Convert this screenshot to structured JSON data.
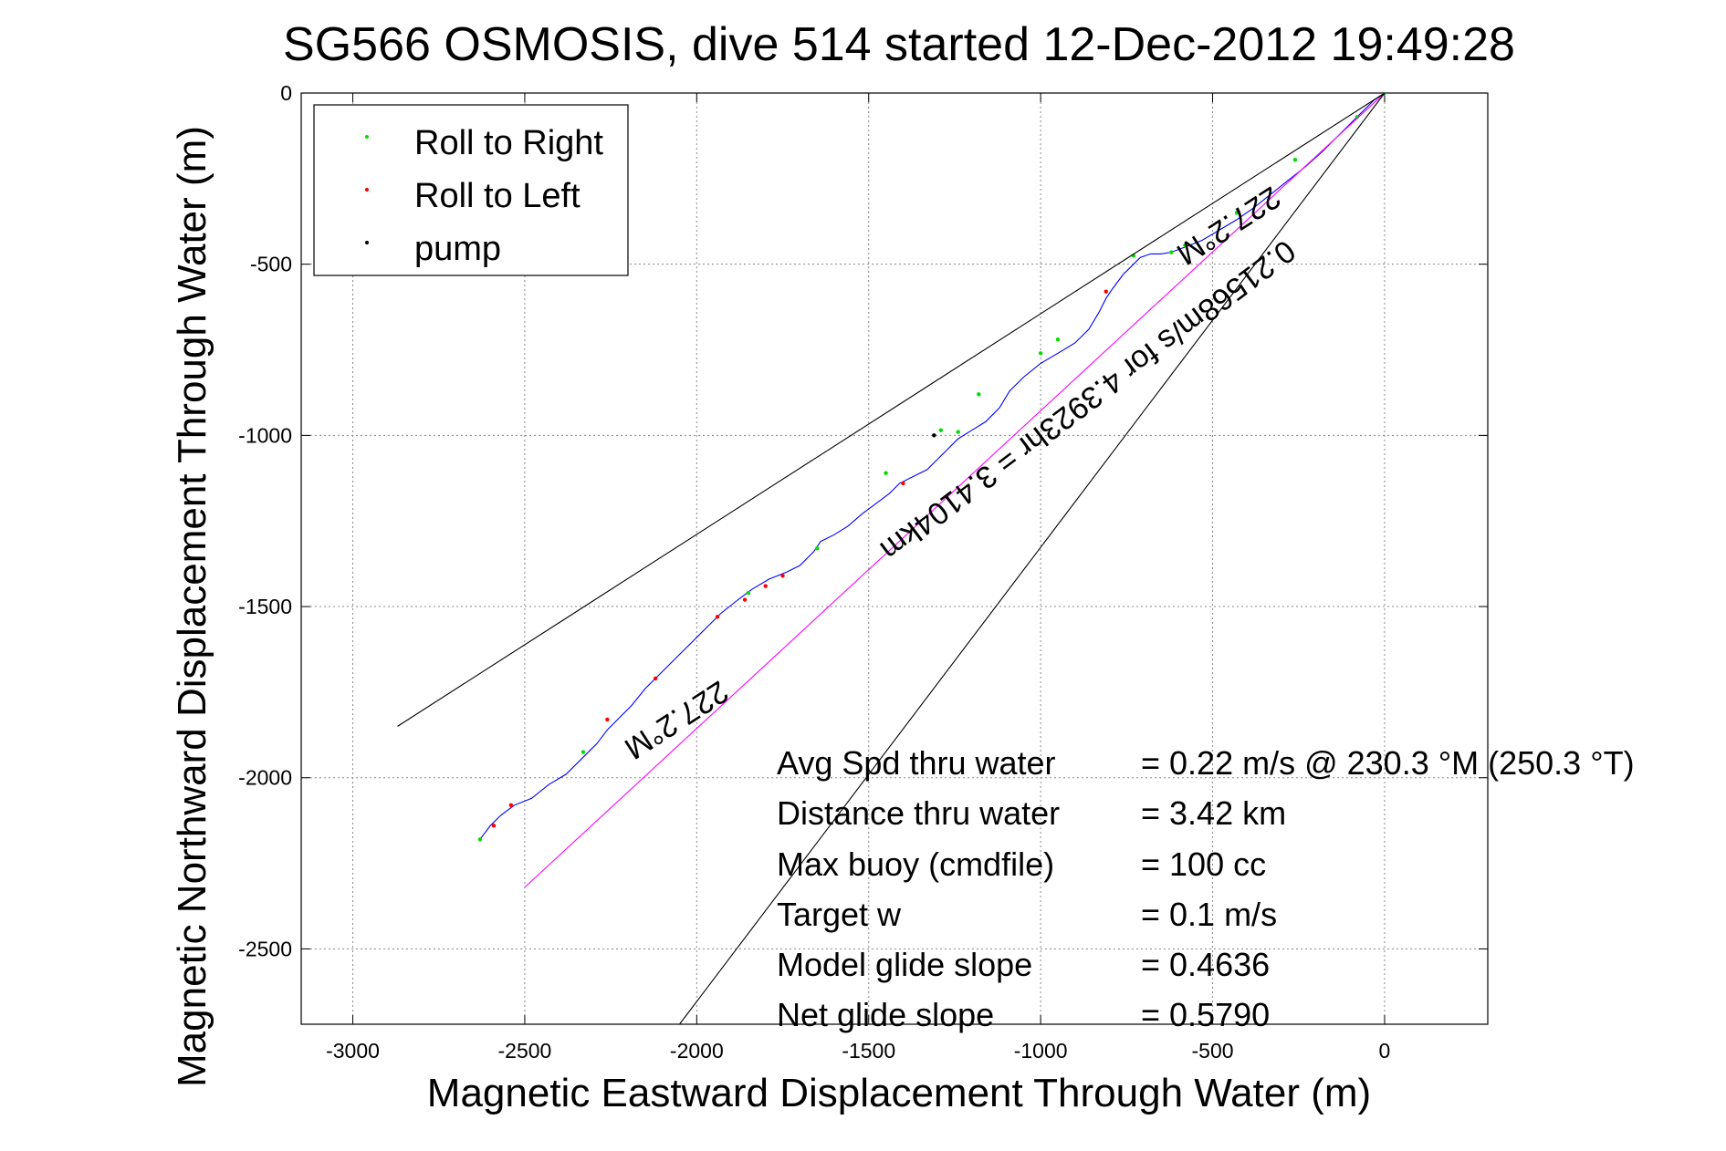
{
  "chart_data": {
    "type": "line",
    "title": "SG566 OSMOSIS, dive 514 started 12-Dec-2012 19:49:28",
    "xlabel": "Magnetic Eastward Displacement Through Water (m)",
    "ylabel": "Magnetic Northward Displacement Through Water (m)",
    "xlim": [
      -3150,
      300
    ],
    "ylim": [
      -2720,
      0
    ],
    "xticks": [
      "-3000",
      "-2500",
      "-2000",
      "-1500",
      "-1000",
      "-500",
      "0"
    ],
    "xtick_values": [
      -3000,
      -2500,
      -2000,
      -1500,
      -1000,
      -500,
      0
    ],
    "yticks": [
      "0",
      "-500",
      "-1000",
      "-1500",
      "-2000",
      "-2500"
    ],
    "ytick_values": [
      0,
      -500,
      -1000,
      -1500,
      -2000,
      -2500
    ],
    "grid": true,
    "legend_placement": "top-left",
    "legend": [
      {
        "label": "Roll to Right",
        "color": "#00dd00"
      },
      {
        "label": "Roll to Left",
        "color": "#ff0000"
      },
      {
        "label": "pump",
        "color": "#000000"
      }
    ],
    "series": [
      {
        "name": "track",
        "color": "#0000ff",
        "x": [
          0,
          -30,
          -80,
          -130,
          -180,
          -230,
          -280,
          -330,
          -380,
          -430,
          -480,
          -530,
          -580,
          -620,
          -650,
          -680,
          -710,
          -730,
          -760,
          -790,
          -810,
          -830,
          -860,
          -900,
          -950,
          -1000,
          -1050,
          -1090,
          -1120,
          -1160,
          -1200,
          -1240,
          -1270,
          -1300,
          -1330,
          -1370,
          -1410,
          -1440,
          -1480,
          -1520,
          -1560,
          -1600,
          -1640,
          -1660,
          -1700,
          -1740,
          -1790,
          -1840,
          -1880,
          -1930,
          -1970,
          -2010,
          -2060,
          -2110,
          -2150,
          -2190,
          -2230,
          -2260,
          -2290,
          -2330,
          -2380,
          -2430,
          -2480,
          -2530,
          -2570,
          -2600,
          -2630
        ],
        "y": [
          0,
          -20,
          -70,
          -120,
          -170,
          -215,
          -255,
          -295,
          -335,
          -370,
          -400,
          -430,
          -450,
          -465,
          -470,
          -470,
          -480,
          -500,
          -530,
          -570,
          -600,
          -640,
          -690,
          -730,
          -760,
          -790,
          -830,
          -870,
          -920,
          -960,
          -985,
          -1010,
          -1040,
          -1070,
          -1100,
          -1120,
          -1140,
          -1170,
          -1200,
          -1230,
          -1265,
          -1290,
          -1310,
          -1340,
          -1380,
          -1400,
          -1420,
          -1450,
          -1480,
          -1520,
          -1560,
          -1600,
          -1650,
          -1700,
          -1740,
          -1790,
          -1830,
          -1860,
          -1900,
          -1940,
          -1990,
          -2020,
          -2060,
          -2080,
          -2110,
          -2140,
          -2180
        ]
      },
      {
        "name": "Roll to Right",
        "color": "#00dd00",
        "mode": "markers",
        "x": [
          0,
          -80,
          -260,
          -430,
          -580,
          -620,
          -730,
          -950,
          -1000,
          -1180,
          -1240,
          -1290,
          -1450,
          -1650,
          -1850,
          -2330,
          -2630
        ],
        "y": [
          0,
          -70,
          -195,
          -350,
          -445,
          -465,
          -475,
          -720,
          -760,
          -880,
          -990,
          -985,
          -1110,
          -1330,
          -1460,
          -1925,
          -2180
        ]
      },
      {
        "name": "Roll to Left",
        "color": "#ff0000",
        "mode": "markers",
        "x": [
          -810,
          -1400,
          -1750,
          -1800,
          -1860,
          -1940,
          -2120,
          -2260,
          -2540,
          -2590
        ],
        "y": [
          -580,
          -1140,
          -1410,
          -1440,
          -1480,
          -1530,
          -1710,
          -1830,
          -2080,
          -2140
        ]
      },
      {
        "name": "pump",
        "color": "#000000",
        "mode": "markers",
        "x": [
          -1310
        ],
        "y": [
          -1000
        ]
      },
      {
        "name": "magenta",
        "color": "#ff00ff",
        "x": [
          0,
          -2500
        ],
        "y": [
          0,
          -2320
        ]
      },
      {
        "name": "bound1",
        "color": "#000000",
        "x": [
          0,
          -2870
        ],
        "y": [
          0,
          -1850
        ]
      },
      {
        "name": "bound2",
        "color": "#000000",
        "x": [
          0,
          -2050
        ],
        "y": [
          0,
          -2720
        ]
      }
    ],
    "heading_labels": [
      "227.2°M",
      "227.2°M"
    ],
    "speed_label": "0.21568m/s for 4.3923hr = 3.4104km",
    "stats": [
      {
        "label": "Avg Spd thru water",
        "value": "=  0.22 m/s @ 230.3 °M (250.3 °T)"
      },
      {
        "label": "Distance thru water",
        "value": "=  3.42 km"
      },
      {
        "label": "Max buoy (cmdfile)",
        "value": "= 100 cc"
      },
      {
        "label": "Target w",
        "value": "= 0.1 m/s"
      },
      {
        "label": "Model glide slope",
        "value": "= 0.4636"
      },
      {
        "label": "Net glide slope",
        "value": "= 0.5790"
      }
    ]
  }
}
